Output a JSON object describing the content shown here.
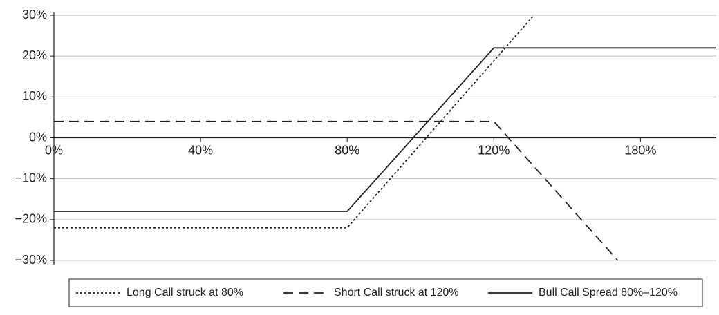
{
  "chart_data": {
    "type": "line",
    "xlim": [
      0,
      211
    ],
    "xticks": [
      {
        "value": 0,
        "label": "0%"
      },
      {
        "value": 40,
        "label": "40%"
      },
      {
        "value": 80,
        "label": "80%"
      },
      {
        "value": 120,
        "label": "120%"
      },
      {
        "value": 180,
        "label": "180%"
      }
    ],
    "ylim": [
      -30,
      30
    ],
    "yticks": [
      {
        "value": 30,
        "label": "30%"
      },
      {
        "value": 20,
        "label": "20%"
      },
      {
        "value": 10,
        "label": "10%"
      },
      {
        "value": 0,
        "label": "0%"
      },
      {
        "value": -10,
        "label": "−10%"
      },
      {
        "value": -20,
        "label": "−20%"
      },
      {
        "value": -30,
        "label": "−30%"
      }
    ],
    "grid": true,
    "legend": "bottom",
    "series": [
      {
        "name": "Long Call struck at 80%",
        "color": "#222222",
        "dash": "dotted",
        "x": [
          0,
          80,
          136.4
        ],
        "values": [
          -22,
          -22,
          30
        ]
      },
      {
        "name": "Short Call struck at 120%",
        "color": "#222222",
        "dash": "dashed",
        "x": [
          0,
          120,
          170.7
        ],
        "values": [
          4,
          4,
          -30
        ]
      },
      {
        "name": "Bull Call Spread 80%–120%",
        "color": "#222222",
        "dash": "solid",
        "x": [
          0,
          80,
          120,
          211
        ],
        "values": [
          -18,
          -18,
          22,
          22
        ]
      }
    ]
  }
}
